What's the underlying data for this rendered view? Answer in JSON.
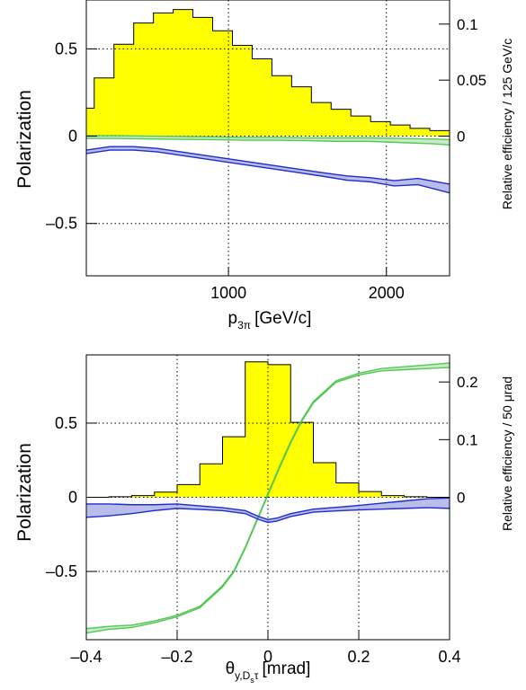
{
  "colors": {
    "hist_fill": "#ffff00",
    "blue": "#1f2ccc",
    "blue_band": "#7f86d8",
    "green": "#55c856",
    "green_band": "#9ad89a"
  },
  "chart_data": [
    {
      "type": "line",
      "ylabel": "Polarization",
      "yrlabel": "Relative efficiency / 125 GeV/c",
      "xlabel": "[GeV/c]",
      "xlabel_symbol": "p",
      "xlabel_sub": "3π",
      "xlim": [
        100,
        2400
      ],
      "ylim": [
        -0.8,
        0.78
      ],
      "y2lim": [
        0,
        0.1215
      ],
      "xticks": [
        1000,
        2000
      ],
      "xtick_labels": [
        "1000",
        "2000"
      ],
      "yticks": [
        0.5,
        0,
        -0.5
      ],
      "ytick_labels": [
        "0.5",
        "0",
        "–0.5"
      ],
      "y2ticks": [
        0.1,
        0.05,
        0
      ],
      "y2tick_labels": [
        "0.1",
        "0.05",
        "0"
      ],
      "grid": true,
      "histogram": {
        "name": "Relative efficiency",
        "bin_edges": [
          100,
          150,
          275,
          400,
          525,
          650,
          775,
          900,
          1025,
          1150,
          1275,
          1400,
          1525,
          1650,
          1775,
          1900,
          2025,
          2150,
          2275,
          2400
        ],
        "values": [
          0.025,
          0.052,
          0.082,
          0.101,
          0.11,
          0.113,
          0.106,
          0.094,
          0.081,
          0.069,
          0.054,
          0.044,
          0.03,
          0.024,
          0.018,
          0.013,
          0.01,
          0.007,
          0.005
        ]
      },
      "series": [
        {
          "color": "blue",
          "x": [
            100,
            250,
            400,
            550,
            700,
            850,
            1000,
            1150,
            1300,
            1450,
            1600,
            1750,
            1900,
            2050,
            2200,
            2400
          ],
          "values": [
            -0.09,
            -0.07,
            -0.07,
            -0.08,
            -0.1,
            -0.12,
            -0.14,
            -0.16,
            -0.18,
            -0.2,
            -0.22,
            -0.24,
            -0.25,
            -0.27,
            -0.26,
            -0.3
          ],
          "band": [
            0.01,
            0.01,
            0.01,
            0.01,
            0.01,
            0.01,
            0.01,
            0.01,
            0.01,
            0.01,
            0.01,
            0.012,
            0.012,
            0.015,
            0.018,
            0.025
          ]
        },
        {
          "color": "green",
          "x": [
            100,
            300,
            500,
            700,
            900,
            1100,
            1300,
            1500,
            1700,
            1900,
            2100,
            2300,
            2400
          ],
          "values": [
            -0.005,
            -0.005,
            -0.008,
            -0.01,
            -0.012,
            -0.015,
            -0.015,
            -0.018,
            -0.02,
            -0.02,
            -0.025,
            -0.03,
            -0.035
          ],
          "band": [
            0.008,
            0.008,
            0.008,
            0.008,
            0.008,
            0.008,
            0.008,
            0.008,
            0.01,
            0.01,
            0.012,
            0.014,
            0.015
          ]
        }
      ]
    },
    {
      "type": "line",
      "ylabel": "Polarization",
      "yrlabel": "Relative efficiency / 50 μrad",
      "xlabel": "[mrad]",
      "xlabel_symbol": "θ",
      "xlabel_sub": "y,D",
      "xlabel_subsub": "s",
      "xlabel_sub_after": "τ",
      "xlim": [
        -0.4,
        0.4
      ],
      "ylim": [
        -0.96,
        0.96
      ],
      "y2lim": [
        0,
        0.247
      ],
      "xticks": [
        -0.4,
        -0.2,
        0,
        0.2,
        0.4
      ],
      "xtick_labels": [
        "–0.4",
        "–0.2",
        "0",
        "0.2",
        "0.4"
      ],
      "yticks": [
        0.5,
        0,
        -0.5
      ],
      "ytick_labels": [
        "0.5",
        "0",
        "–0.5"
      ],
      "y2ticks": [
        0.2,
        0.1,
        0
      ],
      "y2tick_labels": [
        "0.2",
        "0.1",
        "0"
      ],
      "grid": true,
      "histogram": {
        "name": "Relative efficiency",
        "bin_edges": [
          -0.4,
          -0.35,
          -0.3,
          -0.25,
          -0.2,
          -0.15,
          -0.1,
          -0.05,
          0,
          0.05,
          0.1,
          0.15,
          0.2,
          0.25,
          0.3,
          0.35,
          0.4
        ],
        "values": [
          0.0,
          0.001,
          0.003,
          0.009,
          0.022,
          0.058,
          0.105,
          0.235,
          0.23,
          0.13,
          0.06,
          0.025,
          0.01,
          0.003,
          0.001,
          0.0
        ]
      },
      "series": [
        {
          "color": "green",
          "x": [
            -0.4,
            -0.35,
            -0.3,
            -0.25,
            -0.2,
            -0.15,
            -0.1,
            -0.075,
            -0.05,
            -0.025,
            0,
            0.025,
            0.05,
            0.075,
            0.1,
            0.15,
            0.2,
            0.25,
            0.3,
            0.35,
            0.4
          ],
          "values": [
            -0.9,
            -0.88,
            -0.87,
            -0.84,
            -0.8,
            -0.74,
            -0.6,
            -0.5,
            -0.34,
            -0.16,
            0.02,
            0.2,
            0.37,
            0.52,
            0.64,
            0.78,
            0.83,
            0.86,
            0.87,
            0.88,
            0.89
          ],
          "band": [
            0.015,
            0.01,
            0.008,
            0.006,
            0.005,
            0.005,
            0.005,
            0.005,
            0.005,
            0.005,
            0.005,
            0.005,
            0.005,
            0.005,
            0.005,
            0.005,
            0.006,
            0.008,
            0.01,
            0.012,
            0.015
          ]
        },
        {
          "color": "blue",
          "x": [
            -0.4,
            -0.35,
            -0.3,
            -0.25,
            -0.2,
            -0.15,
            -0.1,
            -0.05,
            -0.02,
            0,
            0.02,
            0.05,
            0.1,
            0.15,
            0.2,
            0.25,
            0.3,
            0.35,
            0.4
          ],
          "values": [
            -0.09,
            -0.085,
            -0.08,
            -0.07,
            -0.06,
            -0.07,
            -0.08,
            -0.1,
            -0.14,
            -0.16,
            -0.15,
            -0.12,
            -0.09,
            -0.08,
            -0.07,
            -0.06,
            -0.05,
            -0.04,
            -0.04
          ],
          "band": [
            0.045,
            0.04,
            0.03,
            0.02,
            0.015,
            0.012,
            0.01,
            0.01,
            0.01,
            0.01,
            0.01,
            0.01,
            0.01,
            0.012,
            0.015,
            0.02,
            0.025,
            0.03,
            0.035
          ]
        }
      ]
    }
  ]
}
